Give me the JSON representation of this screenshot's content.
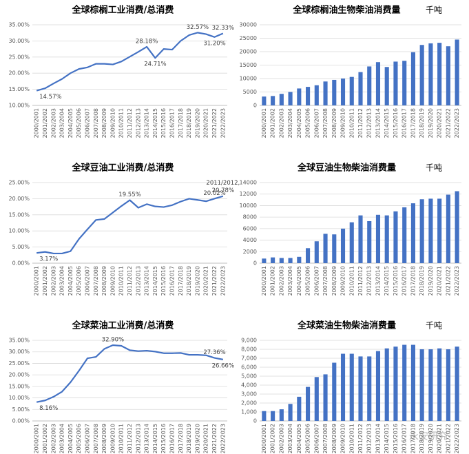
{
  "chart_data": [
    {
      "type": "line",
      "title": "全球棕榈工业消费/总消费",
      "categories": [
        "2000/2001",
        "2001/2002",
        "2002/2003",
        "2003/2004",
        "2004/2005",
        "2005/2006",
        "2006/2007",
        "2007/2008",
        "2008/2009",
        "2009/2010",
        "2010/2011",
        "2011/2012",
        "2012/2013",
        "2013/2014",
        "2014/2015",
        "2015/2016",
        "2016/2017",
        "2017/2018",
        "2018/2019",
        "2019/2020",
        "2020/2021",
        "2021/2022",
        "2022/2023"
      ],
      "values": [
        14.57,
        15.3,
        16.8,
        18.2,
        20.0,
        21.3,
        21.8,
        22.9,
        22.9,
        22.7,
        23.6,
        25.1,
        26.6,
        28.18,
        24.71,
        27.5,
        27.3,
        30.0,
        31.8,
        32.57,
        32.1,
        31.2,
        32.33
      ],
      "value_labels": [
        "14.57%",
        null,
        null,
        null,
        null,
        null,
        null,
        null,
        null,
        null,
        null,
        null,
        null,
        "28.18%",
        "24.71%",
        null,
        null,
        null,
        null,
        "32.57%",
        null,
        "31.20%",
        "32.33%"
      ],
      "color": "#4472c4",
      "ylim": [
        10,
        35
      ],
      "yticks": [
        {
          "value": 10,
          "label": "10.00%"
        },
        {
          "value": 15,
          "label": "15.00%"
        },
        {
          "value": 20,
          "label": "20.00%"
        },
        {
          "value": 25,
          "label": "25.00%"
        },
        {
          "value": 30,
          "label": "30.00%"
        },
        {
          "value": 35,
          "label": "35.00%"
        }
      ],
      "grid": true
    },
    {
      "type": "bar",
      "title": "全球棕榈油生物柴油消费量",
      "unit": "千吨",
      "categories": [
        "2000/2001",
        "2001/2002",
        "2002/2003",
        "2003/2004",
        "2004/2005",
        "2005/2006",
        "2006/2007",
        "2007/2008",
        "2008/2009",
        "2009/2010",
        "2010/2011",
        "2011/2012",
        "2012/2013",
        "2013/2014",
        "2014/2015",
        "2015/2016",
        "2016/2017",
        "2017/2018",
        "2018/2019",
        "2019/2020",
        "2020/2021",
        "2021/2022",
        "2022/2023"
      ],
      "values": [
        3300,
        3500,
        4300,
        5000,
        6300,
        6900,
        7500,
        8900,
        9500,
        10000,
        10600,
        12400,
        14500,
        16100,
        14300,
        16300,
        16600,
        19800,
        22500,
        23100,
        23300,
        22000,
        24500
      ],
      "color": "#4472c4",
      "ylim": [
        0,
        30000
      ],
      "yticks": [
        0,
        5000,
        10000,
        15000,
        20000,
        25000,
        30000
      ],
      "grid": true
    },
    {
      "type": "line",
      "title": "全球豆油工业消费/总消费",
      "categories": [
        "2000/2001",
        "2001/2002",
        "2002/2003",
        "2003/2004",
        "2004/2005",
        "2005/2006",
        "2006/2007",
        "2007/2008",
        "2008/2009",
        "2009/2010",
        "2010/2011",
        "2011/2012",
        "2012/2013",
        "2013/2014",
        "2014/2015",
        "2015/2016",
        "2016/2017",
        "2017/2018",
        "2018/2019",
        "2019/2020",
        "2020/2021",
        "2021/2022",
        "2022/2023"
      ],
      "values": [
        3.17,
        3.5,
        3.0,
        3.0,
        3.7,
        7.5,
        10.5,
        13.4,
        13.7,
        15.7,
        17.7,
        19.55,
        17.2,
        18.3,
        17.6,
        17.4,
        18.0,
        19.1,
        20.0,
        19.6,
        19.2,
        20.02,
        20.78
      ],
      "value_labels": [
        "3.17%",
        null,
        null,
        null,
        null,
        null,
        null,
        null,
        null,
        null,
        null,
        "19.55%",
        null,
        null,
        null,
        null,
        null,
        null,
        null,
        null,
        null,
        "20.02%",
        "20.78%"
      ],
      "annotations": [
        "2011/2012,"
      ],
      "color": "#4472c4",
      "ylim": [
        0,
        25
      ],
      "yticks": [
        {
          "value": 0,
          "label": "0.00%"
        },
        {
          "value": 5,
          "label": "5.00%"
        },
        {
          "value": 10,
          "label": "10.00%"
        },
        {
          "value": 15,
          "label": "15.00%"
        },
        {
          "value": 20,
          "label": "20.00%"
        },
        {
          "value": 25,
          "label": "25.00%"
        }
      ],
      "grid": true
    },
    {
      "type": "bar",
      "title": "全球豆油生物柴油消费量",
      "unit": "千吨",
      "categories": [
        "2000/2001",
        "2001/2002",
        "2002/2003",
        "2003/2004",
        "2004/2005",
        "2005/2006",
        "2006/2007",
        "2007/2008",
        "2008/2009",
        "2009/2010",
        "2010/2011",
        "2011/2012",
        "2012/2013",
        "2013/2014",
        "2014/2015",
        "2015/2016",
        "2016/2017",
        "2017/2018",
        "2018/2019",
        "2019/2020",
        "2020/2021",
        "2021/2022",
        "2022/2023"
      ],
      "values": [
        800,
        1000,
        900,
        900,
        1100,
        2600,
        3800,
        5100,
        5000,
        6000,
        7100,
        8300,
        7300,
        8400,
        8300,
        9000,
        9700,
        10400,
        11100,
        11200,
        11200,
        11900,
        12500
      ],
      "color": "#4472c4",
      "ylim": [
        0,
        14000
      ],
      "yticks": [
        0,
        2000,
        4000,
        6000,
        8000,
        10000,
        12000,
        14000
      ],
      "grid": true
    },
    {
      "type": "line",
      "title": "全球菜油工业消费/总消费",
      "categories": [
        "2000/2001",
        "2001/2002",
        "2002/2003",
        "2003/2004",
        "2004/2005",
        "2005/2006",
        "2006/2007",
        "2007/2008",
        "2008/2009",
        "2009/2010",
        "2010/2011",
        "2011/2012",
        "2012/2013",
        "2013/2014",
        "2014/2015",
        "2015/2016",
        "2016/2017",
        "2017/2018",
        "2018/2019",
        "2019/2020",
        "2020/2021",
        "2021/2022",
        "2022/2023"
      ],
      "values": [
        8.16,
        8.9,
        10.5,
        12.7,
        16.8,
        21.8,
        27.2,
        27.8,
        31.3,
        32.9,
        32.6,
        30.7,
        30.3,
        30.5,
        30.1,
        29.4,
        29.4,
        29.5,
        28.7,
        28.7,
        28.5,
        27.36,
        26.66
      ],
      "value_labels": [
        "8.16%",
        null,
        null,
        null,
        null,
        null,
        null,
        null,
        null,
        "32.90%",
        null,
        null,
        null,
        null,
        null,
        null,
        null,
        null,
        null,
        null,
        null,
        "27.36%",
        "26.66%"
      ],
      "color": "#4472c4",
      "ylim": [
        0,
        35
      ],
      "yticks": [
        {
          "value": 0,
          "label": "0.00%"
        },
        {
          "value": 5,
          "label": "5.00%"
        },
        {
          "value": 10,
          "label": "10.00%"
        },
        {
          "value": 15,
          "label": "15.00%"
        },
        {
          "value": 20,
          "label": "20.00%"
        },
        {
          "value": 25,
          "label": "25.00%"
        },
        {
          "value": 30,
          "label": "30.00%"
        },
        {
          "value": 35,
          "label": "35.00%"
        }
      ],
      "grid": true
    },
    {
      "type": "bar",
      "title": "全球菜油生物柴油消费量",
      "unit": "千吨",
      "categories": [
        "2000/2001",
        "2001/2002",
        "2002/2003",
        "2003/2004",
        "2004/2005",
        "2005/2006",
        "2006/2007",
        "2007/2008",
        "2008/2009",
        "2009/2010",
        "2010/2011",
        "2011/2012",
        "2012/2013",
        "2013/2014",
        "2014/2015",
        "2015/2016",
        "2016/2017",
        "2017/2018",
        "2018/2019",
        "2019/2020",
        "2020/2021",
        "2021/2022",
        "2022/2023"
      ],
      "values": [
        1100,
        1100,
        1300,
        1900,
        2700,
        3800,
        4900,
        5200,
        6500,
        7500,
        7500,
        7200,
        7200,
        7800,
        8100,
        8300,
        8500,
        8500,
        8000,
        8000,
        8100,
        8000,
        8300
      ],
      "color": "#4472c4",
      "ylim": [
        0,
        9000
      ],
      "yticks": [
        0,
        {
          "value": 1000,
          "label": "1,000"
        },
        {
          "value": 2000,
          "label": "2,000"
        },
        {
          "value": 3000,
          "label": "3,000"
        },
        {
          "value": 4000,
          "label": "4,000"
        },
        {
          "value": 5000,
          "label": "5,000"
        },
        {
          "value": 6000,
          "label": "6,000"
        },
        {
          "value": 7000,
          "label": "7,000"
        },
        {
          "value": 8000,
          "label": "8,000"
        },
        {
          "value": 9000,
          "label": "9,000"
        }
      ],
      "grid": true
    }
  ],
  "watermark": "永安研究"
}
